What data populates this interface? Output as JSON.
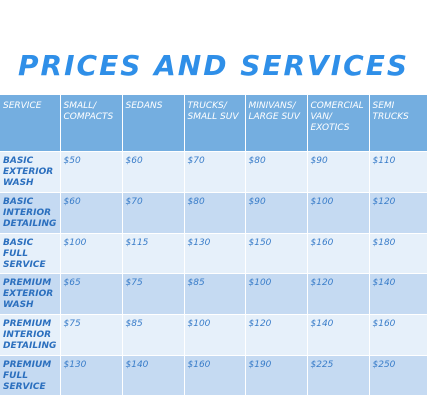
{
  "title": "PRICES AND SERVICES",
  "table": {
    "headers": [
      "SERVICE",
      "SMALL/ COMPACTS",
      "SEDANS",
      "TRUCKS/ SMALL SUV",
      "MINIVANS/ LARGE SUV",
      "COMERCIAL VAN/ EXOTICS",
      "SEMI TRUCKS"
    ],
    "rows": [
      [
        "BASIC EXTERIOR WASH",
        "$50",
        "$60",
        "$70",
        "$80",
        "$90",
        "$110"
      ],
      [
        "BASIC INTERIOR DETAILING",
        "$60",
        "$70",
        "$80",
        "$90",
        "$100",
        "$120"
      ],
      [
        "BASIC FULL SERVICE",
        "$100",
        "$115",
        "$130",
        "$150",
        "$160",
        "$180"
      ],
      [
        "PREMIUM EXTERIOR WASH",
        "$65",
        "$75",
        "$85",
        "$100",
        "$120",
        "$140"
      ],
      [
        "PREMIUM INTERIOR DETAILING",
        "$75",
        "$85",
        "$100",
        "$120",
        "$140",
        "$160"
      ],
      [
        "PREMIUM FULL SERVICE",
        "$130",
        "$140",
        "$160",
        "$190",
        "$225",
        "$250"
      ]
    ]
  },
  "colors": {
    "title": "#2f8fe8",
    "header_bg": "#74aee0",
    "row_light": "#e6f0fa",
    "row_dark": "#c5daf2",
    "cell_text": "#3a7dc9"
  }
}
